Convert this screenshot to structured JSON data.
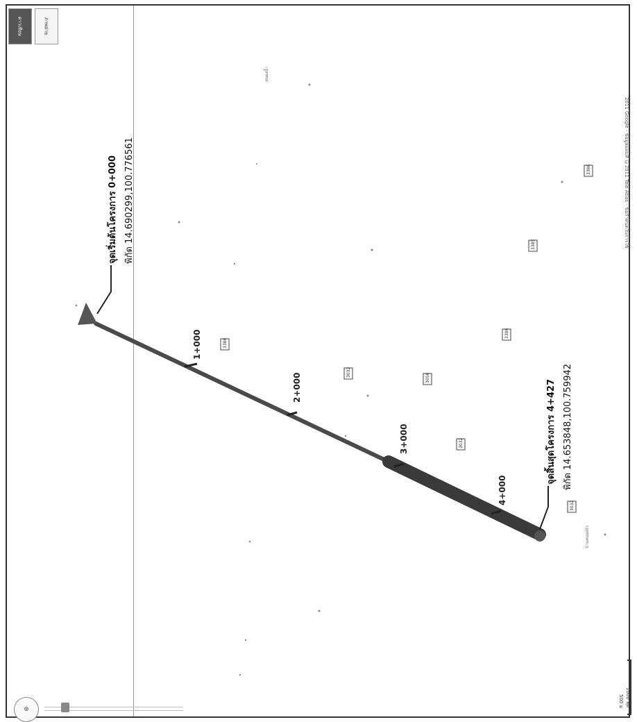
{
  "map": {
    "map_type_buttons": [
      {
        "label": "ดาวเทียม",
        "active": true
      },
      {
        "label": "ภาพถ่าย",
        "active": false
      }
    ],
    "attribution": "2011 Google - ข้อมูลแผนที่ ©2011 Tele Atlas - ข้อกำหนดในการใช้",
    "scale": {
      "top_label": "500 ม",
      "bottom_label": "1000 ฟุต"
    }
  },
  "route": {
    "start": {
      "title": "จุดเริ่มต้นโครงการ 0+000",
      "coord": "พิกัด 14.690299,100.776561"
    },
    "end": {
      "title": "จุดสิ้นสุดโครงการ 4+427",
      "coord": "พิกัด 14.653848,100.759942"
    },
    "km_markers": [
      "1+000",
      "2+000",
      "3+000",
      "4+000"
    ]
  },
  "route_shields": [
    "3386",
    "3032",
    "3056",
    "3386",
    "3385",
    "3032",
    "3386",
    "3032"
  ],
  "place_labels": [
    "บ้านหนองบัว",
    "หนองน้ำ"
  ],
  "colors": {
    "route": "#4a4a4a",
    "route_heavy": "#3a3a3a",
    "marker": "#555555"
  }
}
